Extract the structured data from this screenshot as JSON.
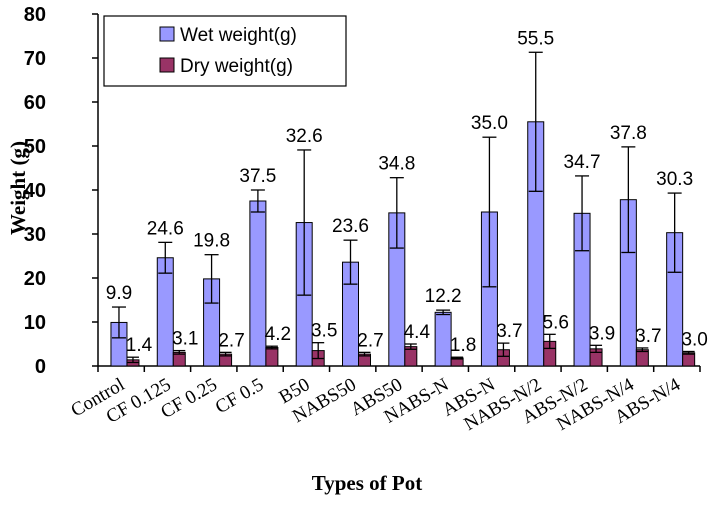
{
  "chart_data": {
    "type": "bar",
    "title": "",
    "xlabel": "Types of Pot",
    "ylabel": "Weight (g)",
    "ylim": [
      0,
      80
    ],
    "yticks": [
      0,
      10,
      20,
      30,
      40,
      50,
      60,
      70,
      80
    ],
    "grid": false,
    "legend_position": "top-left",
    "categories": [
      "Control",
      "CF 0.125",
      "CF 0.25",
      "CF 0.5",
      "B50",
      "NABS50",
      "ABS50",
      "NABS-N",
      "ABS-N",
      "NABS-N/2",
      "ABS-N/2",
      "NABS-N/4",
      "ABS-N/4"
    ],
    "series": [
      {
        "name": "Wet weight(g)",
        "color": "#9999FF",
        "values": [
          9.9,
          24.6,
          19.8,
          37.5,
          32.6,
          23.6,
          34.8,
          12.2,
          35.0,
          55.5,
          34.7,
          37.8,
          30.3
        ],
        "labels": [
          "9.9",
          "24.6",
          "19.8",
          "37.5",
          "32.6",
          "23.6",
          "34.8",
          "12.2",
          "35.0",
          "55.5",
          "34.7",
          "37.8",
          "30.3"
        ],
        "errors": [
          3.5,
          3.5,
          5.5,
          2.5,
          16.5,
          5.0,
          8.0,
          0.5,
          17.0,
          15.8,
          8.5,
          12.0,
          9.0
        ]
      },
      {
        "name": "Dry weight(g)",
        "color": "#993366",
        "values": [
          1.4,
          3.1,
          2.7,
          4.2,
          3.5,
          2.7,
          4.4,
          1.8,
          3.7,
          5.6,
          3.9,
          3.7,
          3.0
        ],
        "labels": [
          "1.4",
          "3.1",
          "2.7",
          "4.2",
          "3.5",
          "2.7",
          "4.4",
          "1.8",
          "3.7",
          "5.6",
          "3.9",
          "3.7",
          "3.0"
        ],
        "errors": [
          0.6,
          0.4,
          0.4,
          0.3,
          1.8,
          0.4,
          0.6,
          0.2,
          1.5,
          1.6,
          0.8,
          0.4,
          0.3
        ]
      }
    ]
  }
}
